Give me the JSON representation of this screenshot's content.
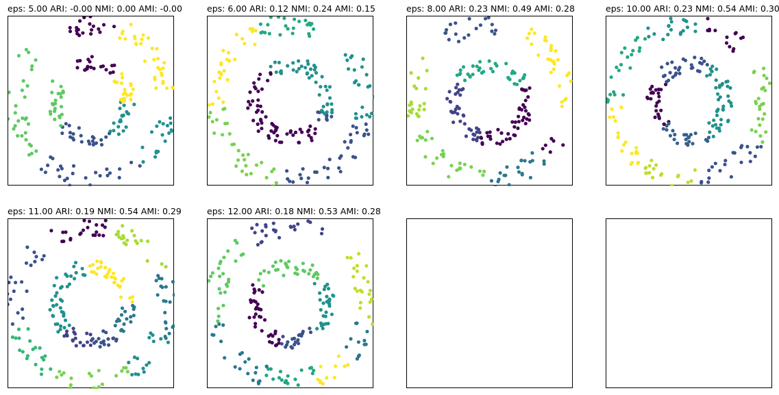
{
  "chart_data": [
    {
      "type": "scatter",
      "title": "eps: 5.00 ARI: -0.00 NMI: 0.00 AMI: -0.00",
      "xlim": [
        -1.1,
        1.1
      ],
      "ylim": [
        -1.1,
        1.1
      ],
      "grid": false,
      "axes_visible": true,
      "clusters": [
        {
          "color": "#440154",
          "arcs": [
            [
              0.48,
              0.0,
              45,
              115,
              20
            ],
            [
              1.0,
              0.0,
              72,
              115,
              22
            ]
          ]
        },
        {
          "color": "#3b528b",
          "arcs": [
            [
              0.48,
              0.0,
              220,
              300,
              24
            ],
            [
              1.0,
              0.0,
              225,
              310,
              26
            ]
          ]
        },
        {
          "color": "#21918c",
          "arcs": [
            [
              0.48,
              0.0,
              300,
              360,
              20
            ],
            [
              1.0,
              0.0,
              310,
              352,
              18
            ]
          ]
        },
        {
          "color": "#5ec962",
          "arcs": [
            [
              0.48,
              0.0,
              150,
              220,
              22
            ],
            [
              1.0,
              0.0,
              140,
              222,
              30
            ]
          ]
        },
        {
          "color": "#fde725",
          "arcs": [
            [
              0.48,
              0.0,
              0,
              45,
              22
            ],
            [
              1.0,
              0.0,
              0,
              68,
              32
            ]
          ]
        }
      ]
    },
    {
      "type": "scatter",
      "title": "eps: 6.00 ARI: 0.12 NMI: 0.24 AMI: 0.15",
      "xlim": [
        -1.1,
        1.1
      ],
      "ylim": [
        -1.1,
        1.1
      ],
      "grid": false,
      "axes_visible": true,
      "clusters": [
        {
          "color": "#440154",
          "arcs": [
            [
              0.48,
              0.0,
              125,
              320,
              60
            ]
          ]
        },
        {
          "color": "#3b528b",
          "arcs": [
            [
              0.48,
              0.0,
              320,
              340,
              8
            ],
            [
              1.0,
              0.0,
              260,
              345,
              34
            ]
          ]
        },
        {
          "color": "#21918c",
          "arcs": [
            [
              0.48,
              0.0,
              340,
              485,
              44
            ],
            [
              1.0,
              0.0,
              345,
              405,
              24
            ]
          ]
        },
        {
          "color": "#22a884",
          "arcs": [
            [
              1.0,
              0.0,
              65,
              115,
              24
            ]
          ]
        },
        {
          "color": "#7ad151",
          "arcs": [
            [
              1.0,
              0.0,
              185,
              260,
              30
            ]
          ]
        },
        {
          "color": "#fde725",
          "arcs": [
            [
              1.0,
              0.0,
              115,
              185,
              28
            ]
          ]
        }
      ]
    },
    {
      "type": "scatter",
      "title": "eps: 8.00 ARI: 0.23 NMI: 0.49 AMI: 0.28",
      "xlim": [
        -1.1,
        1.1
      ],
      "ylim": [
        -1.1,
        1.1
      ],
      "grid": false,
      "axes_visible": true,
      "clusters": [
        {
          "color": "#440154",
          "arcs": [
            [
              0.48,
              0.0,
              255,
              390,
              46
            ],
            [
              1.0,
              0.0,
              315,
              330,
              6
            ]
          ]
        },
        {
          "color": "#414487",
          "arcs": [
            [
              0.48,
              0.0,
              150,
              255,
              38
            ]
          ]
        },
        {
          "color": "#2a788e",
          "arcs": [
            [
              1.0,
              0.0,
              270,
              315,
              22
            ]
          ]
        },
        {
          "color": "#22a884",
          "arcs": [
            [
              0.48,
              0.0,
              30,
              150,
              36
            ],
            [
              1.0,
              0.0,
              0,
              0,
              0
            ]
          ]
        },
        {
          "color": "#3b528b",
          "arcs": [
            [
              1.0,
              0.0,
              80,
              125,
              20
            ]
          ]
        },
        {
          "color": "#7ad151",
          "arcs": [
            [
              1.0,
              0.0,
              200,
              265,
              26
            ]
          ]
        },
        {
          "color": "#a8db34",
          "arcs": [
            [
              1.0,
              0.0,
              140,
              200,
              22
            ]
          ]
        },
        {
          "color": "#fde725",
          "arcs": [
            [
              1.0,
              0.0,
              -5,
              60,
              30
            ]
          ]
        }
      ]
    },
    {
      "type": "scatter",
      "title": "eps: 10.00 ARI: 0.23 NMI: 0.54 AMI: 0.30",
      "xlim": [
        -1.1,
        1.1
      ],
      "ylim": [
        -1.1,
        1.1
      ],
      "grid": false,
      "axes_visible": true,
      "clusters": [
        {
          "color": "#440154",
          "arcs": [
            [
              0.48,
              0.0,
              145,
              225,
              26
            ],
            [
              1.0,
              0.0,
              45,
              78,
              14
            ]
          ]
        },
        {
          "color": "#3b528b",
          "arcs": [
            [
              0.48,
              0.0,
              60,
              145,
              28
            ],
            [
              1.0,
              0.0,
              275,
              330,
              22
            ]
          ]
        },
        {
          "color": "#21918c",
          "arcs": [
            [
              0.48,
              0.0,
              300,
              420,
              44
            ],
            [
              1.0,
              0.0,
              82,
              125,
              20
            ]
          ]
        },
        {
          "color": "#355f8d",
          "arcs": [
            [
              0.48,
              0.0,
              225,
              300,
              24
            ]
          ]
        },
        {
          "color": "#22a884",
          "arcs": [
            [
              1.0,
              0.0,
              125,
              185,
              22
            ]
          ]
        },
        {
          "color": "#7ad151",
          "arcs": [
            [
              1.0,
              0.0,
              -30,
              25,
              26
            ]
          ]
        },
        {
          "color": "#bddf26",
          "arcs": [
            [
              1.0,
              0.0,
              235,
              275,
              18
            ]
          ]
        },
        {
          "color": "#fde725",
          "arcs": [
            [
              1.0,
              0.0,
              185,
              235,
              20
            ]
          ]
        }
      ]
    },
    {
      "type": "scatter",
      "title": "eps: 11.00 ARI: 0.19 NMI: 0.54 AMI: 0.29",
      "xlim": [
        -1.1,
        1.1
      ],
      "ylim": [
        -1.1,
        1.1
      ],
      "grid": false,
      "axes_visible": true,
      "clusters": [
        {
          "color": "#440154",
          "arcs": [
            [
              1.0,
              0.0,
              75,
              120,
              22
            ]
          ]
        },
        {
          "color": "#414487",
          "arcs": [
            [
              0.48,
              0.0,
              225,
              270,
              18
            ]
          ]
        },
        {
          "color": "#3b528b",
          "arcs": [
            [
              0.48,
              0.0,
              270,
              315,
              18
            ],
            [
              1.0,
              0.0,
              135,
              195,
              22
            ]
          ]
        },
        {
          "color": "#2a788e",
          "arcs": [
            [
              0.48,
              0.0,
              315,
              360,
              18
            ],
            [
              1.0,
              0.0,
              -25,
              25,
              22
            ]
          ]
        },
        {
          "color": "#21918c",
          "arcs": [
            [
              0.48,
              0.0,
              95,
              225,
              40
            ],
            [
              1.0,
              0.0,
              300,
              335,
              16
            ]
          ]
        },
        {
          "color": "#35b779",
          "arcs": [
            [
              1.0,
              0.0,
              195,
              240,
              20
            ]
          ]
        },
        {
          "color": "#7ad151",
          "arcs": [
            [
              1.0,
              0.0,
              240,
              300,
              22
            ]
          ]
        },
        {
          "color": "#a8db34",
          "arcs": [
            [
              1.0,
              0.0,
              25,
              70,
              20
            ]
          ]
        },
        {
          "color": "#fde725",
          "arcs": [
            [
              0.48,
              0.0,
              0,
              95,
              32
            ]
          ]
        }
      ]
    },
    {
      "type": "scatter",
      "title": "eps: 12.00 ARI: 0.18 NMI: 0.53 AMI: 0.28",
      "xlim": [
        -1.1,
        1.1
      ],
      "ylim": [
        -1.1,
        1.1
      ],
      "grid": false,
      "axes_visible": true,
      "clusters": [
        {
          "color": "#440154",
          "arcs": [
            [
              0.48,
              0.0,
              150,
              255,
              36
            ]
          ]
        },
        {
          "color": "#414487",
          "arcs": [
            [
              1.0,
              0.0,
              65,
              120,
              24
            ]
          ]
        },
        {
          "color": "#3b528b",
          "arcs": [
            [
              0.48,
              0.0,
              255,
              310,
              20
            ]
          ]
        },
        {
          "color": "#2a788e",
          "arcs": [
            [
              1.0,
              0.0,
              195,
              250,
              22
            ],
            [
              1.0,
              0.0,
              315,
              345,
              12
            ]
          ]
        },
        {
          "color": "#21918c",
          "arcs": [
            [
              0.48,
              0.0,
              310,
              400,
              30
            ]
          ]
        },
        {
          "color": "#22a884",
          "arcs": [
            [
              1.0,
              0.0,
              250,
              290,
              18
            ]
          ]
        },
        {
          "color": "#5ec962",
          "arcs": [
            [
              0.48,
              0.0,
              40,
              150,
              32
            ],
            [
              1.0,
              0.0,
              120,
              195,
              26
            ]
          ]
        },
        {
          "color": "#bddf26",
          "arcs": [
            [
              1.0,
              0.0,
              -15,
              40,
              22
            ]
          ]
        },
        {
          "color": "#fde725",
          "arcs": [
            [
              1.0,
              0.0,
              290,
              315,
              12
            ]
          ]
        }
      ]
    },
    {
      "type": "scatter",
      "title": "",
      "empty": true,
      "xlim": [
        0,
        1
      ],
      "ylim": [
        0,
        1
      ],
      "clusters": []
    },
    {
      "type": "scatter",
      "title": "",
      "empty": true,
      "xlim": [
        0,
        1
      ],
      "ylim": [
        0,
        1
      ],
      "clusters": []
    }
  ]
}
